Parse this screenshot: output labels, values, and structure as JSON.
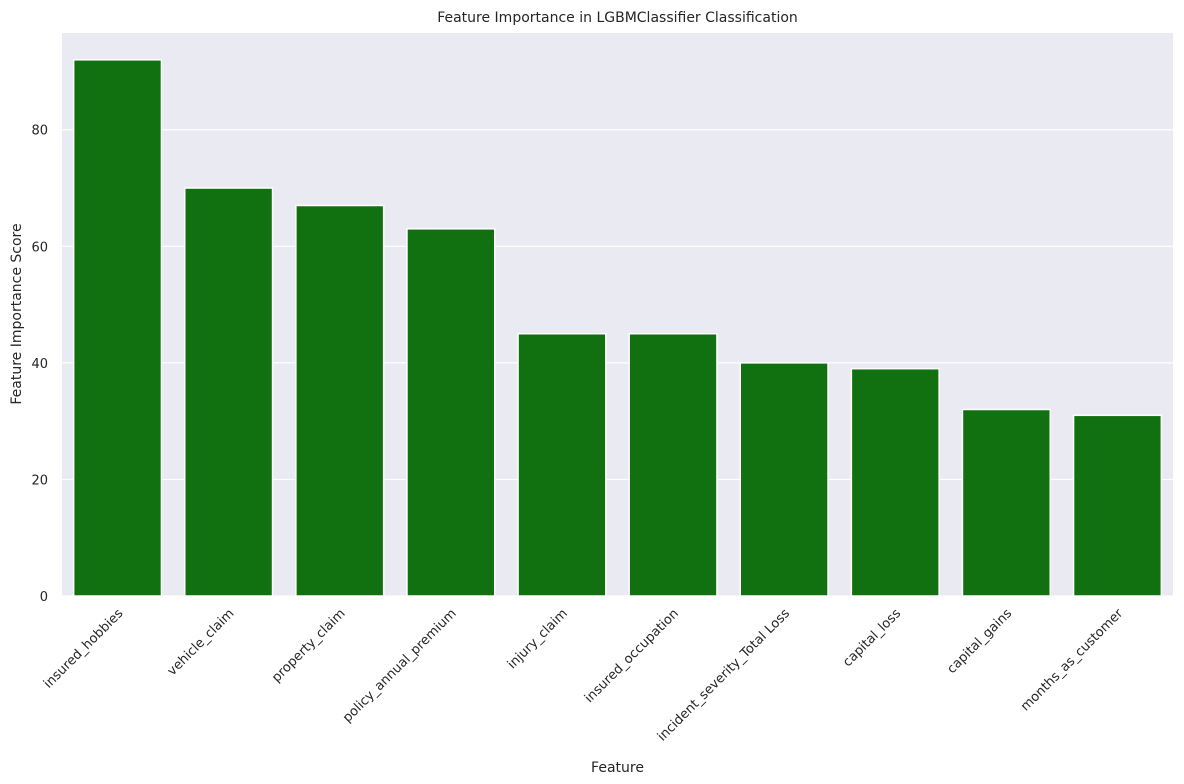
{
  "chart_data": {
    "type": "bar",
    "title": "Feature Importance in LGBMClassifier Classification",
    "xlabel": "Feature",
    "ylabel": "Feature Importance Score",
    "categories": [
      "insured_hobbies",
      "vehicle_claim",
      "property_claim",
      "policy_annual_premium",
      "injury_claim",
      "insured_occupation",
      "incident_severity_Total Loss",
      "capital_loss",
      "capital_gains",
      "months_as_customer"
    ],
    "values": [
      92,
      70,
      67,
      63,
      45,
      45,
      40,
      39,
      32,
      31
    ],
    "ylim": [
      0,
      96.6
    ],
    "yticks": [
      0,
      20,
      40,
      60,
      80
    ],
    "grid": true,
    "bar_color": "#11700f",
    "plot_background": "#eaeaf2",
    "grid_color": "#ffffff"
  }
}
